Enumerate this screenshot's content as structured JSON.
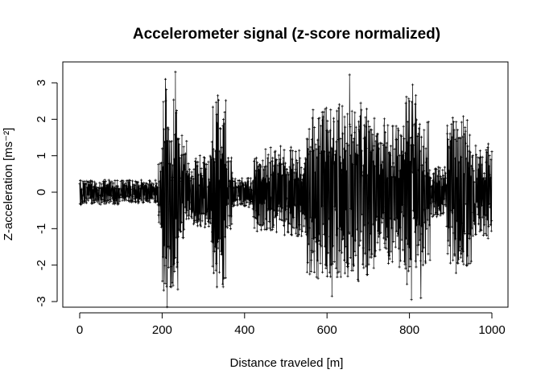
{
  "chart_data": {
    "type": "line",
    "title": "Accelerometer signal (z-score normalized)",
    "xlabel": "Distance traveled [m]",
    "ylabel": "Z-acceleration [ms⁻²]",
    "xlim": [
      0,
      1000
    ],
    "ylim": [
      -3,
      3.2
    ],
    "x_ticks": [
      0,
      200,
      400,
      600,
      800,
      1000
    ],
    "x_tick_labels": [
      "0",
      "200",
      "400",
      "600",
      "800",
      "1000"
    ],
    "y_ticks": [
      -3,
      -2,
      -1,
      0,
      1,
      2,
      3
    ],
    "y_tick_labels": [
      "-3",
      "-2",
      "-1",
      "0",
      "1",
      "2",
      "3"
    ],
    "grid": false,
    "marker": "+",
    "series_color": "#000000",
    "segments": [
      {
        "x_start": 0,
        "x_end": 190,
        "amplitude": 0.33
      },
      {
        "x_start": 190,
        "x_end": 200,
        "amplitude": 1.0
      },
      {
        "x_start": 200,
        "x_end": 215,
        "amplitude": 3.0
      },
      {
        "x_start": 215,
        "x_end": 240,
        "amplitude": 2.6
      },
      {
        "x_start": 240,
        "x_end": 260,
        "amplitude": 1.5
      },
      {
        "x_start": 260,
        "x_end": 320,
        "amplitude": 1.0
      },
      {
        "x_start": 320,
        "x_end": 355,
        "amplitude": 2.6
      },
      {
        "x_start": 355,
        "x_end": 370,
        "amplitude": 1.0
      },
      {
        "x_start": 370,
        "x_end": 420,
        "amplitude": 0.4
      },
      {
        "x_start": 420,
        "x_end": 450,
        "amplitude": 1.1
      },
      {
        "x_start": 450,
        "x_end": 550,
        "amplitude": 1.2
      },
      {
        "x_start": 550,
        "x_end": 700,
        "amplitude": 2.4
      },
      {
        "x_start": 700,
        "x_end": 790,
        "amplitude": 2.0
      },
      {
        "x_start": 790,
        "x_end": 820,
        "amplitude": 2.7
      },
      {
        "x_start": 820,
        "x_end": 850,
        "amplitude": 2.0
      },
      {
        "x_start": 850,
        "x_end": 890,
        "amplitude": 0.7
      },
      {
        "x_start": 890,
        "x_end": 950,
        "amplitude": 2.1
      },
      {
        "x_start": 950,
        "x_end": 1000,
        "amplitude": 1.3
      }
    ],
    "sample_count": 1400,
    "peaks": [
      {
        "x": 208,
        "y": 3.1
      },
      {
        "x": 232,
        "y": 3.3
      },
      {
        "x": 207,
        "y": -2.5
      },
      {
        "x": 222,
        "y": -2.6
      },
      {
        "x": 335,
        "y": 2.65
      },
      {
        "x": 333,
        "y": -2.6
      },
      {
        "x": 655,
        "y": 3.22
      },
      {
        "x": 808,
        "y": 2.95
      },
      {
        "x": 612,
        "y": -2.85
      },
      {
        "x": 805,
        "y": -2.95
      },
      {
        "x": 828,
        "y": -2.9
      },
      {
        "x": 918,
        "y": -1.95
      }
    ]
  }
}
